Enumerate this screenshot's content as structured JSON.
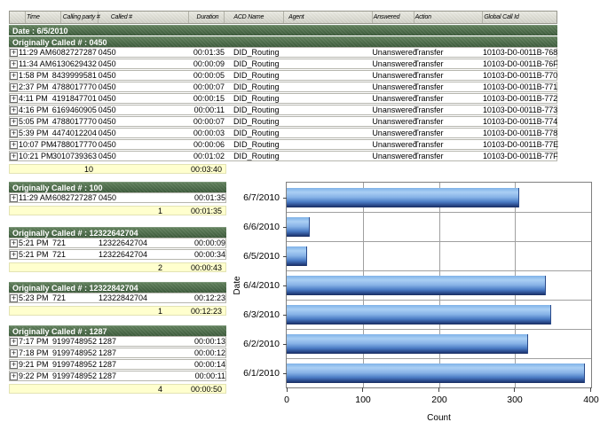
{
  "report": {
    "columns": [
      "",
      "Time",
      "Calling party #",
      "Called #",
      "Duration",
      "ACD Name",
      "Agent",
      "Answered",
      "Action",
      "Global Call Id"
    ],
    "date_header": "Date : 6/5/2010",
    "groups": [
      {
        "title": "Originally Called # : 0450",
        "rows": [
          [
            "11:29 AM",
            "6082727287",
            "0450",
            "00:01:35",
            "DID_Routing",
            "",
            "Unanswered",
            "Transfer",
            "10103-D0-0011B-768"
          ],
          [
            "11:34 AM",
            "6130629432",
            "0450",
            "00:00:09",
            "DID_Routing",
            "",
            "Unanswered",
            "Transfer",
            "10103-D0-0011B-76F"
          ],
          [
            "1:58 PM",
            "8439999581",
            "0450",
            "00:00:05",
            "DID_Routing",
            "",
            "Unanswered",
            "Transfer",
            "10103-D0-0011B-770"
          ],
          [
            "2:37 PM",
            "4788017770",
            "0450",
            "00:00:07",
            "DID_Routing",
            "",
            "Unanswered",
            "Transfer",
            "10103-D0-0011B-771"
          ],
          [
            "4:11 PM",
            "4191847701",
            "0450",
            "00:00:15",
            "DID_Routing",
            "",
            "Unanswered",
            "Transfer",
            "10103-D0-0011B-772"
          ],
          [
            "4:16 PM",
            "6169460905",
            "0450",
            "00:00:11",
            "DID_Routing",
            "",
            "Unanswered",
            "Transfer",
            "10103-D0-0011B-773"
          ],
          [
            "5:05 PM",
            "4788017770",
            "0450",
            "00:00:07",
            "DID_Routing",
            "",
            "Unanswered",
            "Transfer",
            "10103-D0-0011B-774"
          ],
          [
            "5:39 PM",
            "4474012204",
            "0450",
            "00:00:03",
            "DID_Routing",
            "",
            "Unanswered",
            "Transfer",
            "10103-D0-0011B-778"
          ],
          [
            "10:07 PM",
            "4788017770",
            "0450",
            "00:00:06",
            "DID_Routing",
            "",
            "Unanswered",
            "Transfer",
            "10103-D0-0011B-77E"
          ],
          [
            "10:21 PM",
            "3010739363",
            "0450",
            "00:01:02",
            "DID_Routing",
            "",
            "Unanswered",
            "Transfer",
            "10103-D0-0011B-77F"
          ]
        ],
        "summary": {
          "count": "10",
          "duration": "00:03:40"
        }
      },
      {
        "title": "Originally Called # : 100",
        "rows": [
          [
            "11:29 AM",
            "6082727287",
            "0450",
            "00:01:35"
          ]
        ],
        "summary": {
          "count": "1",
          "duration": "00:01:35"
        }
      },
      {
        "title": "Originally Called # : 12322642704",
        "rows": [
          [
            "5:21 PM",
            "721",
            "12322642704",
            "00:00:09"
          ],
          [
            "5:21 PM",
            "721",
            "12322642704",
            "00:00:34"
          ]
        ],
        "summary": {
          "count": "2",
          "duration": "00:00:43"
        }
      },
      {
        "title": "Originally Called # : 12322842704",
        "rows": [
          [
            "5:23 PM",
            "721",
            "12322842704",
            "00:12:23"
          ]
        ],
        "summary": {
          "count": "1",
          "duration": "00:12:23"
        }
      },
      {
        "title": "Originally Called # : 1287",
        "rows": [
          [
            "7:17 PM",
            "9199748952",
            "1287",
            "00:00:13"
          ],
          [
            "7:18 PM",
            "9199748952",
            "1287",
            "00:00:12"
          ],
          [
            "9:21 PM",
            "9199748952",
            "1287",
            "00:00:14"
          ],
          [
            "9:22 PM",
            "9199748952",
            "1287",
            "00:00:11"
          ]
        ],
        "summary": {
          "count": "4",
          "duration": "00:00:50"
        }
      }
    ],
    "expand_icon_glyph": "+"
  },
  "chart_data": {
    "type": "bar",
    "orientation": "horizontal",
    "title": "",
    "categories": [
      "6/7/2010",
      "6/6/2010",
      "6/5/2010",
      "6/4/2010",
      "6/3/2010",
      "6/2/2010",
      "6/1/2010"
    ],
    "values": [
      305,
      30,
      27,
      340,
      348,
      317,
      392
    ],
    "xlabel": "Count",
    "ylabel": "Date",
    "xlim": [
      0,
      400
    ],
    "xticks": [
      0,
      100,
      200,
      300,
      400
    ],
    "grid": true,
    "legend": "none"
  },
  "colors": {
    "group_bar_green": "#44633f",
    "summary_yellow": "#ffffce",
    "bar_blue_light": "#aacff4",
    "bar_blue_dark": "#1a2d5e",
    "header_gray": "#d9d9cf"
  }
}
